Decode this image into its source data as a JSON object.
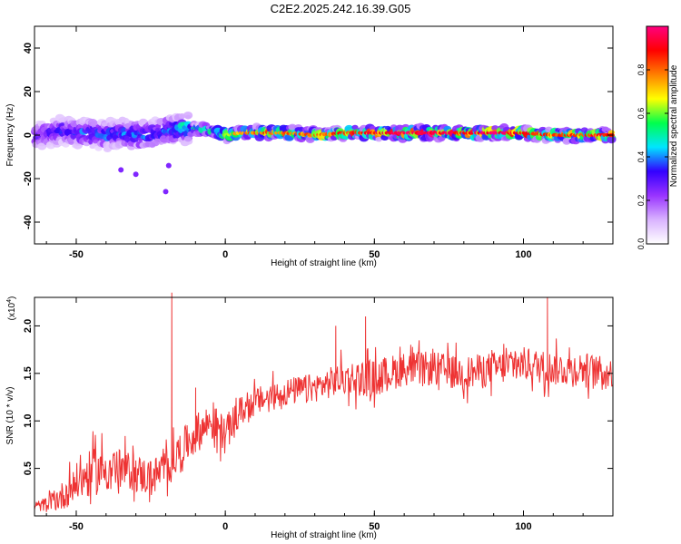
{
  "title": "C2E2.2025.242.16.39.G05",
  "colorbar": {
    "label": "Normalized spectral amplitude",
    "ticks": [
      "0.0",
      "0.2",
      "0.4",
      "0.6",
      "0.8"
    ],
    "tick_values": [
      0.0,
      0.2,
      0.4,
      0.6,
      0.8
    ],
    "range": [
      0,
      1
    ],
    "colors": [
      "#ffffff",
      "#d9b3ff",
      "#9933ff",
      "#3300ff",
      "#00e5ff",
      "#00ff4d",
      "#ffff00",
      "#ff8000",
      "#ff0000",
      "#ff0080"
    ]
  },
  "chart_data": [
    {
      "type": "heatmap",
      "name": "spectrogram",
      "xlabel": "Height of straight line (km)",
      "ylabel": "Frequency (Hz)",
      "xlim": [
        -64,
        130
      ],
      "ylim": [
        -50,
        50
      ],
      "xticks": [
        -50,
        0,
        50,
        100
      ],
      "xtick_labels": [
        "-50",
        "0",
        "50",
        "100"
      ],
      "yticks": [
        -40,
        -20,
        0,
        20,
        40
      ],
      "ytick_labels": [
        "-40",
        "-20",
        "0",
        "20",
        "40"
      ],
      "ridge": {
        "x": [
          -62,
          -55,
          -50,
          -45,
          -40,
          -35,
          -30,
          -25,
          -20,
          -15,
          -10,
          -5,
          0,
          5,
          10,
          20,
          30,
          40,
          50,
          60,
          70,
          80,
          90,
          100,
          110,
          120,
          130
        ],
        "center_hz": [
          0,
          2,
          1,
          1,
          0,
          1,
          0,
          0,
          2,
          3,
          3,
          2,
          0,
          1,
          1,
          1,
          0,
          1,
          1,
          1,
          1,
          1,
          1,
          1,
          0,
          0,
          0
        ],
        "amplitude": [
          0.3,
          0.35,
          0.35,
          0.4,
          0.4,
          0.4,
          0.45,
          0.4,
          0.4,
          0.5,
          0.55,
          0.6,
          0.6,
          0.7,
          0.75,
          0.75,
          0.75,
          0.8,
          0.85,
          0.9,
          0.9,
          0.85,
          0.9,
          0.85,
          0.8,
          0.8,
          0.85
        ]
      },
      "outliers": [
        {
          "x": -35,
          "y": -16
        },
        {
          "x": -30,
          "y": -18
        },
        {
          "x": -20,
          "y": -26
        },
        {
          "x": -19,
          "y": -14
        }
      ]
    },
    {
      "type": "line",
      "name": "snr",
      "xlabel": "Height of straight line (km)",
      "ylabel": "SNR (10 * v/v)",
      "multiplier": "(x10",
      "multiplier_exp": "4",
      "xlim": [
        -64,
        130
      ],
      "ylim": [
        0,
        2.3
      ],
      "xticks": [
        -50,
        0,
        50,
        100
      ],
      "xtick_labels": [
        "-50",
        "0",
        "50",
        "100"
      ],
      "yticks": [
        0.5,
        1.0,
        1.5,
        2.0
      ],
      "ytick_labels": [
        "0.5",
        "1.0",
        "1.5",
        "2.0"
      ],
      "color": "#ee3333",
      "series": [
        {
          "x": [
            -64,
            -60,
            -55,
            -50,
            -45,
            -40,
            -35,
            -30,
            -25,
            -20,
            -18,
            -15,
            -10,
            -5,
            0,
            5,
            10,
            20,
            30,
            40,
            50,
            60,
            70,
            80,
            90,
            100,
            110,
            120,
            130
          ],
          "values": [
            0.1,
            0.12,
            0.2,
            0.35,
            0.45,
            0.5,
            0.5,
            0.45,
            0.4,
            0.5,
            0.55,
            0.7,
            0.85,
            1.0,
            0.85,
            1.1,
            1.2,
            1.3,
            1.35,
            1.45,
            1.45,
            1.55,
            1.55,
            1.5,
            1.55,
            1.6,
            1.55,
            1.55,
            1.5
          ],
          "noise": [
            0.05,
            0.08,
            0.15,
            0.2,
            0.25,
            0.25,
            0.2,
            0.2,
            0.2,
            0.2,
            0.2,
            0.2,
            0.2,
            0.2,
            0.2,
            0.15,
            0.15,
            0.15,
            0.15,
            0.18,
            0.2,
            0.18,
            0.18,
            0.18,
            0.18,
            0.18,
            0.18,
            0.18,
            0.15
          ]
        }
      ],
      "spikes": [
        {
          "x": -18,
          "y": 2.35
        },
        {
          "x": 108,
          "y": 2.3
        },
        {
          "x": 47,
          "y": 2.1
        },
        {
          "x": -10,
          "y": 1.35
        },
        {
          "x": 37,
          "y": 2.0
        }
      ]
    }
  ]
}
